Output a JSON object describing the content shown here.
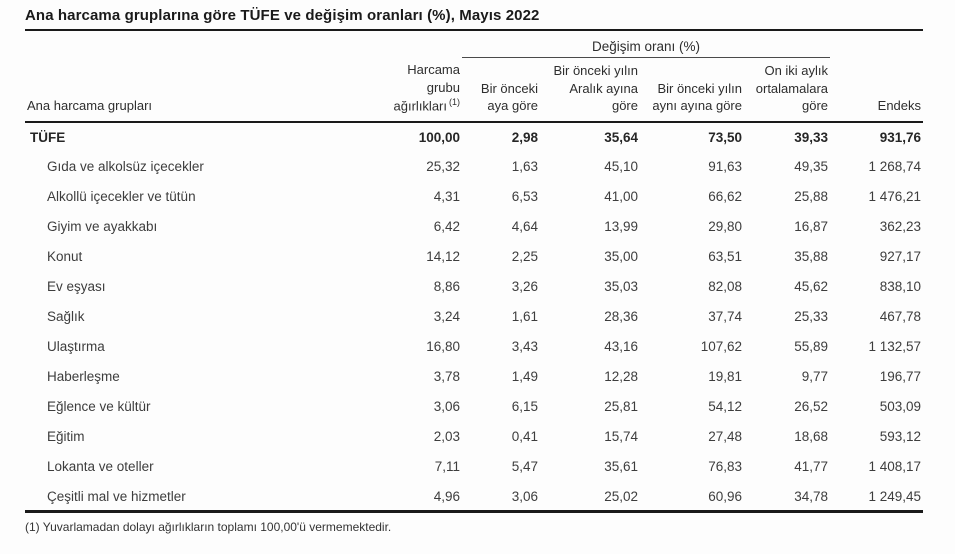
{
  "chart_data": {
    "type": "table",
    "title": "Ana harcama gruplarına göre TÜFE ve değişim oranları (%), Mayıs 2022",
    "group_header": "Değişim oranı (%)",
    "weights_superscript": "(1)",
    "columns": [
      "Ana harcama grupları",
      "Harcama grubu ağırlıkları",
      "Bir önceki aya göre",
      "Bir önceki yılın Aralık ayına göre",
      "Bir önceki yılın aynı ayına göre",
      "On iki aylık ortalamalara göre",
      "Endeks"
    ],
    "rows": [
      [
        "TÜFE",
        "100,00",
        "2,98",
        "35,64",
        "73,50",
        "39,33",
        "931,76"
      ],
      [
        "Gıda ve alkolsüz içecekler",
        "25,32",
        "1,63",
        "45,10",
        "91,63",
        "49,35",
        "1 268,74"
      ],
      [
        "Alkollü içecekler ve tütün",
        "4,31",
        "6,53",
        "41,00",
        "66,62",
        "25,88",
        "1 476,21"
      ],
      [
        "Giyim ve ayakkabı",
        "6,42",
        "4,64",
        "13,99",
        "29,80",
        "16,87",
        "362,23"
      ],
      [
        "Konut",
        "14,12",
        "2,25",
        "35,00",
        "63,51",
        "35,88",
        "927,17"
      ],
      [
        "Ev eşyası",
        "8,86",
        "3,26",
        "35,03",
        "82,08",
        "45,62",
        "838,10"
      ],
      [
        "Sağlık",
        "3,24",
        "1,61",
        "28,36",
        "37,74",
        "25,33",
        "467,78"
      ],
      [
        "Ulaştırma",
        "16,80",
        "3,43",
        "43,16",
        "107,62",
        "55,89",
        "1 132,57"
      ],
      [
        "Haberleşme",
        "3,78",
        "1,49",
        "12,28",
        "19,81",
        "9,77",
        "196,77"
      ],
      [
        "Eğlence ve kültür",
        "3,06",
        "6,15",
        "25,81",
        "54,12",
        "26,52",
        "503,09"
      ],
      [
        "Eğitim",
        "2,03",
        "0,41",
        "15,74",
        "27,48",
        "18,68",
        "593,12"
      ],
      [
        "Lokanta ve oteller",
        "7,11",
        "5,47",
        "35,61",
        "76,83",
        "41,77",
        "1 408,17"
      ],
      [
        "Çeşitli mal ve hizmetler",
        "4,96",
        "3,06",
        "25,02",
        "60,96",
        "34,78",
        "1 249,45"
      ]
    ],
    "bold_rows": [
      0
    ],
    "footnote": "(1) Yuvarlamadan dolayı ağırlıkların toplamı 100,00'ü vermemektedir.",
    "layout": "grid_off_legend_none",
    "colors": {
      "text": "#3d3d3d",
      "heading": "#1a1a1a",
      "rule": "#1a1a1a"
    }
  }
}
